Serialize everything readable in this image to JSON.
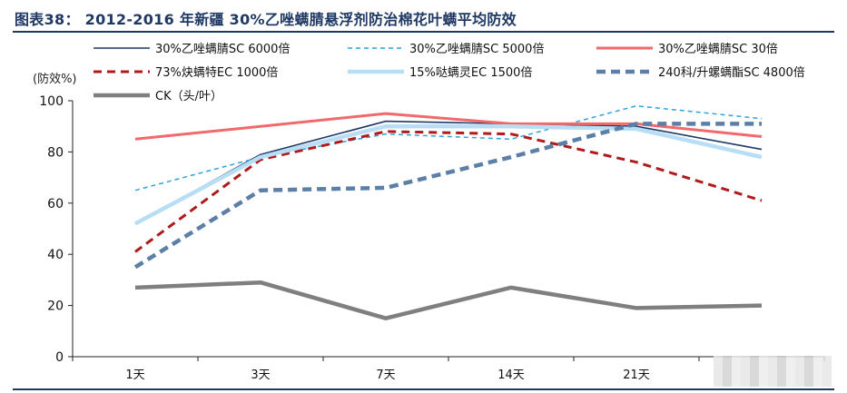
{
  "title": "图表38：  2012-2016 年新疆 30%乙唑螨腈悬浮剂防治棉花叶螨平均防效",
  "chart_data": {
    "type": "line",
    "title": "图表38：  2012-2016 年新疆 30%乙唑螨腈悬浮剂防治棉花叶螨平均防效",
    "ylabel": "(防效%)",
    "xlabel": "",
    "categories": [
      "1天",
      "3天",
      "7天",
      "14天",
      "21天",
      ""
    ],
    "ylim": [
      0,
      100
    ],
    "yticks": [
      0,
      20,
      40,
      60,
      80,
      100
    ],
    "grid": false,
    "legend_position": "top",
    "series": [
      {
        "name": "30%乙唑螨腈SC 6000倍",
        "values": [
          52,
          79,
          92,
          91,
          90,
          81
        ],
        "color": "#1f3864",
        "dash": "",
        "width": 1.6
      },
      {
        "name": "30%乙唑螨腈SC 5000倍",
        "values": [
          65,
          78,
          87,
          85,
          98,
          93
        ],
        "color": "#2ea3dc",
        "dash": "5,4",
        "width": 1.5
      },
      {
        "name": "30%乙唑螨腈SC 30倍",
        "values": [
          85,
          90,
          95,
          91,
          91,
          86
        ],
        "color": "#f0696b",
        "dash": "",
        "width": 3
      },
      {
        "name": "73%炔螨特EC 1000倍",
        "values": [
          41,
          77,
          88,
          87,
          76,
          61
        ],
        "color": "#b01a1a",
        "dash": "9,6",
        "width": 3
      },
      {
        "name": "15%哒螨灵EC 1500倍",
        "values": [
          52,
          78,
          90,
          90,
          89,
          78
        ],
        "color": "#b8def5",
        "dash": "",
        "width": 4.5
      },
      {
        "name": "240科/升螺螨酯SC 4800倍",
        "values": [
          35,
          65,
          66,
          78,
          91,
          91
        ],
        "color": "#5c7fa8",
        "dash": "10,6",
        "width": 4.5
      },
      {
        "name": "CK（头/叶）",
        "values": [
          27,
          29,
          15,
          27,
          19,
          20
        ],
        "color": "#7f7f7f",
        "dash": "",
        "width": 4.5
      }
    ]
  }
}
